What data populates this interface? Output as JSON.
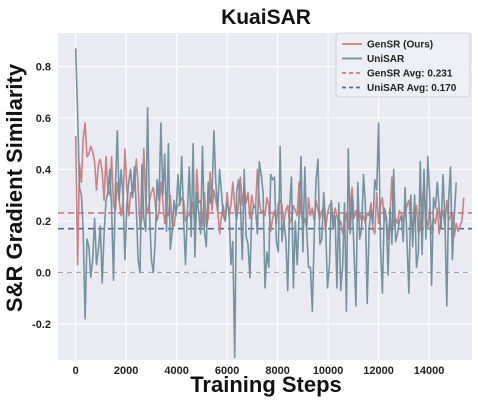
{
  "chart_data": {
    "type": "line",
    "title": "KuaiSAR",
    "xlabel": "Training Steps",
    "ylabel": "S&R Gradient Similarity",
    "xlim": [
      -700,
      15700
    ],
    "ylim": [
      -0.34,
      0.93
    ],
    "xticks": [
      0,
      2000,
      4000,
      6000,
      8000,
      10000,
      12000,
      14000
    ],
    "yticks": [
      -0.2,
      0.0,
      0.2,
      0.4,
      0.6,
      0.8
    ],
    "grid": true,
    "legend_position": "top-right",
    "x_step": 75,
    "series": [
      {
        "name": "GenSR (Ours)",
        "color": "#c97b7e",
        "values": [
          0.53,
          0.03,
          0.42,
          0.35,
          0.52,
          0.58,
          0.45,
          0.46,
          0.49,
          0.47,
          0.43,
          0.32,
          0.42,
          0.44,
          0.39,
          0.28,
          0.45,
          0.32,
          0.3,
          0.45,
          0.26,
          0.24,
          0.35,
          0.28,
          0.22,
          0.27,
          0.48,
          0.33,
          0.22,
          0.31,
          0.3,
          0.33,
          0.44,
          0.34,
          0.17,
          0.21,
          0.48,
          0.27,
          0.23,
          0.28,
          0.31,
          0.33,
          0.27,
          0.2,
          0.24,
          0.35,
          0.28,
          0.19,
          0.24,
          0.22,
          0.3,
          0.19,
          0.18,
          0.24,
          0.26,
          0.27,
          0.29,
          0.28,
          0.2,
          0.22,
          0.22,
          0.26,
          0.27,
          0.17,
          0.4,
          0.27,
          0.28,
          0.18,
          0.31,
          0.18,
          0.21,
          0.39,
          0.24,
          0.32,
          0.28,
          0.24,
          0.15,
          0.22,
          0.26,
          0.2,
          0.31,
          0.22,
          0.26,
          0.35,
          0.26,
          0.2,
          0.27,
          0.37,
          0.26,
          0.34,
          0.27,
          0.31,
          0.21,
          0.3,
          0.26,
          0.25,
          0.4,
          0.28,
          0.23,
          0.24,
          0.22,
          0.29,
          0.26,
          0.16,
          0.21,
          0.24,
          0.19,
          0.27,
          0.28,
          0.26,
          0.19,
          0.24,
          0.26,
          0.19,
          0.21,
          0.26,
          0.24,
          0.22,
          0.35,
          0.23,
          0.19,
          0.21,
          0.17,
          0.29,
          0.22,
          0.25,
          0.2,
          0.28,
          0.24,
          0.21,
          0.24,
          0.25,
          0.16,
          0.23,
          0.26,
          0.27,
          0.19,
          0.25,
          0.22,
          0.18,
          0.2,
          0.15,
          0.19,
          0.23,
          0.17,
          0.26,
          0.33,
          0.21,
          0.24,
          0.2,
          0.23,
          0.2,
          0.22,
          0.19,
          0.23,
          0.22,
          0.27,
          0.17,
          0.15,
          0.31,
          0.19,
          0.26,
          0.29,
          0.2,
          0.22,
          0.13,
          0.22,
          0.37,
          0.18,
          0.21,
          0.19,
          0.24,
          0.23,
          0.2,
          0.23,
          0.26,
          0.28,
          0.21,
          0.19,
          0.2,
          0.26,
          0.15,
          0.17,
          0.28,
          0.34,
          0.22,
          0.17,
          0.25,
          0.15,
          0.21,
          0.19,
          0.25,
          0.15,
          0.21,
          0.24,
          0.18,
          0.28,
          0.2,
          0.22,
          0.23,
          0.14,
          0.19,
          0.16,
          0.18,
          0.2,
          0.29
        ]
      },
      {
        "name": "UniSAR",
        "color": "#6e8e9b",
        "values": [
          0.87,
          0.62,
          0.33,
          0.3,
          0.16,
          -0.18,
          0.13,
          0.1,
          -0.02,
          0.05,
          0.21,
          0.03,
          0.09,
          0.18,
          -0.04,
          0.15,
          0.28,
          0.31,
          0.4,
          0.25,
          -0.03,
          0.33,
          0.55,
          0.28,
          0.4,
          0.3,
          0.05,
          0.26,
          0.35,
          0.4,
          0.29,
          0.41,
          0.25,
          0.05,
          0.0,
          0.42,
          0.21,
          0.16,
          0.64,
          0.23,
          0.05,
          0.0,
          0.12,
          0.36,
          0.28,
          0.58,
          0.3,
          0.46,
          0.16,
          0.5,
          0.09,
          0.16,
          0.28,
          0.22,
          0.38,
          0.26,
          0.45,
          0.21,
          0.03,
          0.24,
          0.41,
          0.14,
          0.5,
          0.06,
          0.31,
          0.23,
          0.15,
          0.49,
          0.16,
          0.1,
          0.35,
          0.27,
          0.3,
          0.55,
          0.35,
          0.24,
          0.4,
          0.31,
          0.22,
          0.2,
          0.27,
          0.25,
          0.03,
          0.12,
          -0.33,
          0.31,
          0.36,
          0.27,
          0.05,
          0.4,
          0.14,
          0.11,
          -0.02,
          0.22,
          0.26,
          0.25,
          0.15,
          0.43,
          0.38,
          0.31,
          -0.06,
          0.08,
          0.02,
          0.38,
          0.36,
          0.37,
          0.12,
          0.08,
          0.49,
          0.12,
          0.2,
          0.13,
          -0.07,
          0.25,
          0.37,
          -0.06,
          0.2,
          0.03,
          0.22,
          0.45,
          0.08,
          0.41,
          0.17,
          0.02,
          0.02,
          -0.15,
          0.14,
          0.36,
          0.44,
          0.11,
          0.13,
          0.31,
          0.19,
          -0.06,
          0.03,
          0.28,
          0.17,
          0.22,
          -0.06,
          0.27,
          -0.07,
          0.02,
          0.27,
          -0.15,
          0.48,
          0.15,
          0.29,
          0.08,
          -0.13,
          0.35,
          0.13,
          0.17,
          0.38,
          0.27,
          -0.12,
          0.17,
          0.24,
          0.19,
          0.36,
          0.32,
          0.58,
          0.1,
          -0.08,
          0.25,
          0.22,
          -0.01,
          0.25,
          0.11,
          0.4,
          0.12,
          0.15,
          0.2,
          0.22,
          0.12,
          0.33,
          0.12,
          -0.08,
          0.3,
          0.1,
          0.3,
          0.02,
          0.08,
          0.43,
          0.07,
          0.4,
          0.13,
          0.45,
          0.3,
          -0.05,
          0.29,
          0.25,
          0.35,
          0.25,
          0.17,
          0.38,
          0.21,
          -0.13,
          0.28,
          0.41,
          0.05,
          0.22,
          0.35
        ]
      }
    ],
    "reference_lines": [
      {
        "name": "GenSR Avg: 0.231",
        "value": 0.231,
        "color": "#c97b7e",
        "style": "dashed"
      },
      {
        "name": "UniSAR Avg: 0.170",
        "value": 0.17,
        "color": "#4f6f8a",
        "style": "dashed"
      },
      {
        "name": "",
        "value": 0.0,
        "color": "#9a9a9a",
        "style": "dashed"
      }
    ],
    "colors": {
      "background": "#eaeaf2",
      "grid": "#ffffff"
    }
  }
}
